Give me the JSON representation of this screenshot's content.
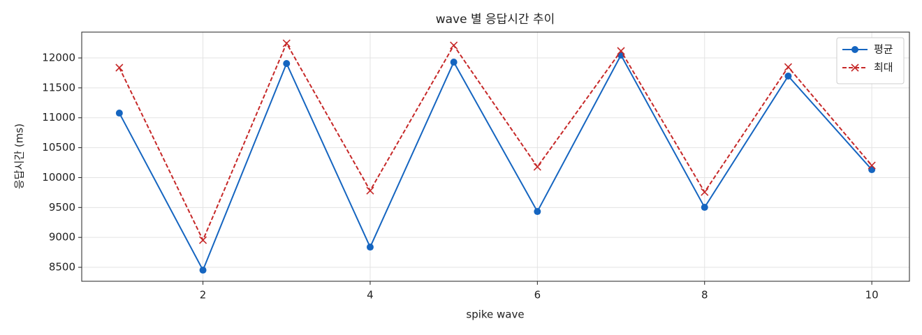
{
  "chart_data": {
    "type": "line",
    "title": "wave 별 응답시간 추이",
    "xlabel": "spike wave",
    "ylabel": "응답시간 (ms)",
    "x": [
      1,
      2,
      3,
      4,
      5,
      6,
      7,
      8,
      9,
      10
    ],
    "series": [
      {
        "name": "평균",
        "color": "#1565c0",
        "marker": "o",
        "linestyle": "solid",
        "values": [
          11078,
          8453,
          11907,
          8838,
          11930,
          9433,
          12047,
          9503,
          11697,
          10133
        ]
      },
      {
        "name": "최대",
        "color": "#c62828",
        "marker": "x",
        "linestyle": "dashed",
        "values": [
          11837,
          8955,
          12245,
          9782,
          12210,
          10180,
          12117,
          9758,
          11848,
          10203
        ]
      }
    ],
    "xlim": [
      0.55,
      10.45
    ],
    "ylim": [
      8267,
      12432
    ],
    "xticks": [
      2,
      4,
      6,
      8,
      10
    ],
    "yticks": [
      8500,
      9000,
      9500,
      10000,
      10500,
      11000,
      11500,
      12000
    ],
    "grid": true,
    "legend": "upper right"
  }
}
